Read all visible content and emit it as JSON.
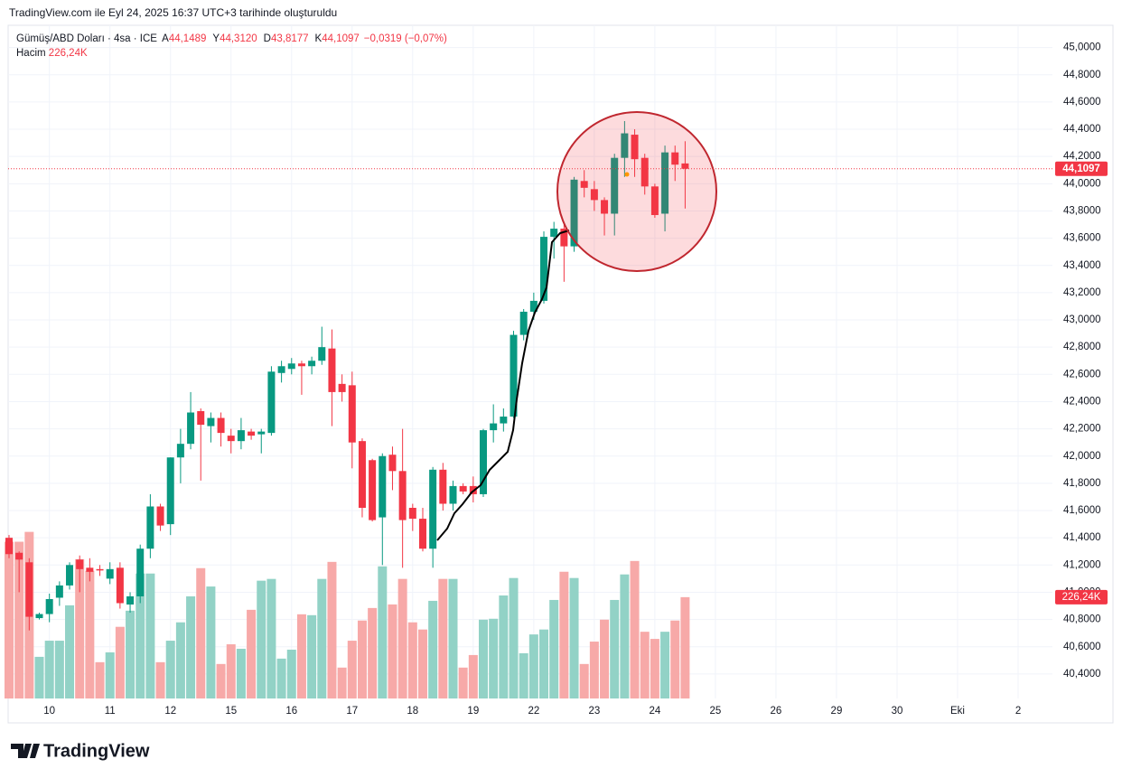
{
  "header": "TradingView.com ile Eyl 24, 2025 16:37 UTC+3 tarihinde oluşturuldu",
  "footer": "TradingView",
  "legend": {
    "symbol": "Gümüş/ABD Doları · 4sa · ICE",
    "fields": [
      {
        "key": "A",
        "value": "44,1489"
      },
      {
        "key": "Y",
        "value": "44,3120"
      },
      {
        "key": "D",
        "value": "43,8177"
      },
      {
        "key": "K",
        "value": "44,1097"
      }
    ],
    "change": "−0,0319 (−0,07%)",
    "volume_key": "Hacim",
    "volume_value": "226,24K"
  },
  "chart_data": {
    "type": "candlestick",
    "open": [
      41.4,
      41.29,
      41.22,
      40.81,
      40.84,
      40.96,
      41.05,
      41.24,
      41.18,
      41.17,
      41.1,
      41.18,
      40.91,
      40.97,
      41.32,
      41.63,
      41.5,
      41.99,
      42.09,
      42.33,
      42.22,
      42.28,
      42.15,
      42.11,
      42.18,
      42.16,
      42.17,
      42.61,
      42.64,
      42.68,
      42.66,
      42.7,
      42.79,
      42.53,
      42.52,
      42.11,
      41.97,
      41.55,
      42.01,
      41.89,
      41.62,
      41.54,
      41.32,
      41.9,
      41.65,
      41.78,
      41.78,
      41.72,
      42.19,
      42.24,
      42.29,
      42.89,
      43.06,
      43.14,
      43.61,
      43.67,
      43.54,
      44.02,
      43.96,
      43.88,
      43.78,
      44.19,
      44.36,
      44.19,
      43.98,
      43.78,
      44.23,
      44.1489
    ],
    "high": [
      41.42,
      41.3,
      41.25,
      40.85,
      40.99,
      41.08,
      41.22,
      41.27,
      41.25,
      41.2,
      41.22,
      41.22,
      41.0,
      41.35,
      41.72,
      41.65,
      41.99,
      42.2,
      42.47,
      42.35,
      42.32,
      42.32,
      42.2,
      42.28,
      42.2,
      42.2,
      42.66,
      42.7,
      42.72,
      42.7,
      42.73,
      42.95,
      42.93,
      42.6,
      42.62,
      42.13,
      41.98,
      42.02,
      42.07,
      42.2,
      41.65,
      41.62,
      41.92,
      41.95,
      41.82,
      41.8,
      41.85,
      42.2,
      42.38,
      42.35,
      42.92,
      43.08,
      43.2,
      43.65,
      43.72,
      43.7,
      44.05,
      44.1,
      44.02,
      43.9,
      44.22,
      44.46,
      44.4,
      44.22,
      44.0,
      44.28,
      44.28,
      44.312
    ],
    "low": [
      41.25,
      41.0,
      40.72,
      40.8,
      40.78,
      40.9,
      41.02,
      41.0,
      41.08,
      41.12,
      41.06,
      40.88,
      40.85,
      40.92,
      41.25,
      41.45,
      41.42,
      41.8,
      42.05,
      41.82,
      42.1,
      42.07,
      42.02,
      42.05,
      42.12,
      42.02,
      42.15,
      42.54,
      42.6,
      42.45,
      42.6,
      42.67,
      42.22,
      42.4,
      41.91,
      41.55,
      41.52,
      41.2,
      41.75,
      41.18,
      41.45,
      41.3,
      41.18,
      41.6,
      41.6,
      41.72,
      41.66,
      41.7,
      42.1,
      42.18,
      42.28,
      42.85,
      43.0,
      43.12,
      43.45,
      43.28,
      43.5,
      43.9,
      43.8,
      43.62,
      43.62,
      44.05,
      44.05,
      43.92,
      43.75,
      43.65,
      44.02,
      43.8177
    ],
    "close": [
      41.28,
      41.24,
      40.82,
      40.84,
      40.95,
      41.05,
      41.2,
      41.17,
      41.15,
      41.16,
      41.17,
      40.92,
      40.97,
      41.32,
      41.63,
      41.49,
      41.99,
      42.09,
      42.32,
      42.23,
      42.28,
      42.17,
      42.11,
      42.19,
      42.15,
      42.18,
      42.62,
      42.66,
      42.68,
      42.66,
      42.7,
      42.8,
      42.47,
      42.47,
      42.1,
      41.62,
      41.53,
      42.0,
      41.89,
      41.53,
      41.54,
      41.32,
      41.9,
      41.65,
      41.78,
      41.74,
      41.72,
      42.19,
      42.24,
      42.29,
      42.89,
      43.06,
      43.14,
      43.61,
      43.67,
      43.54,
      44.03,
      43.97,
      43.88,
      43.78,
      44.19,
      44.37,
      44.18,
      43.98,
      43.77,
      44.23,
      44.14,
      44.1097
    ],
    "volume": [
      350,
      350,
      372,
      93,
      129,
      129,
      208,
      311,
      285,
      81,
      103,
      160,
      196,
      279,
      279,
      81,
      129,
      170,
      228,
      291,
      250,
      77,
      121,
      111,
      198,
      263,
      267,
      89,
      109,
      188,
      186,
      267,
      305,
      69,
      129,
      174,
      202,
      295,
      210,
      267,
      170,
      154,
      218,
      267,
      267,
      69,
      97,
      176,
      178,
      230,
      269,
      101,
      143,
      154,
      220,
      283,
      269,
      77,
      127,
      176,
      220,
      277,
      307,
      149,
      133,
      149,
      174,
      226.24
    ],
    "up_color": "#089981",
    "down_color": "#f23645",
    "volume_up_color": "#92d2c6",
    "volume_down_color": "#f7a9a8",
    "xlim": [
      0,
      103.4
    ],
    "xticks": [
      {
        "value": 4,
        "label": "10"
      },
      {
        "value": 10,
        "label": "11"
      },
      {
        "value": 16,
        "label": "12"
      },
      {
        "value": 22,
        "label": "15"
      },
      {
        "value": 28,
        "label": "16"
      },
      {
        "value": 34,
        "label": "17"
      },
      {
        "value": 40,
        "label": "18"
      },
      {
        "value": 46,
        "label": "19"
      },
      {
        "value": 52,
        "label": "22"
      },
      {
        "value": 58,
        "label": "23"
      },
      {
        "value": 64,
        "label": "24"
      },
      {
        "value": 70,
        "label": "25"
      },
      {
        "value": 76,
        "label": "26"
      },
      {
        "value": 82,
        "label": "29"
      },
      {
        "value": 88,
        "label": "30"
      },
      {
        "value": 94,
        "label": "Eki"
      },
      {
        "value": 100,
        "label": "2"
      }
    ],
    "ylim": [
      40.22,
      45.15
    ],
    "yticks": [
      {
        "value": 40.4,
        "label": "40,4000"
      },
      {
        "value": 40.6,
        "label": "40,6000"
      },
      {
        "value": 40.8,
        "label": "40,8000"
      },
      {
        "value": 41.0,
        "label": "41,0000"
      },
      {
        "value": 41.2,
        "label": "41,2000"
      },
      {
        "value": 41.4,
        "label": "41,4000"
      },
      {
        "value": 41.6,
        "label": "41,6000"
      },
      {
        "value": 41.8,
        "label": "41,8000"
      },
      {
        "value": 42.0,
        "label": "42,0000"
      },
      {
        "value": 42.2,
        "label": "42,2000"
      },
      {
        "value": 42.4,
        "label": "42,4000"
      },
      {
        "value": 42.6,
        "label": "42,6000"
      },
      {
        "value": 42.8,
        "label": "42,8000"
      },
      {
        "value": 43.0,
        "label": "43,0000"
      },
      {
        "value": 43.2,
        "label": "43,2000"
      },
      {
        "value": 43.4,
        "label": "43,4000"
      },
      {
        "value": 43.6,
        "label": "43,6000"
      },
      {
        "value": 43.8,
        "label": "43,8000"
      },
      {
        "value": 44.0,
        "label": "44,0000"
      },
      {
        "value": 44.2,
        "label": "44,2000"
      },
      {
        "value": 44.4,
        "label": "44,4000"
      },
      {
        "value": 44.6,
        "label": "44,6000"
      },
      {
        "value": 44.8,
        "label": "44,8000"
      },
      {
        "value": 45.0,
        "label": "45,0000"
      }
    ],
    "volume_ylim": [
      0,
      460
    ],
    "last_price": {
      "value": 44.1097,
      "label": "44,1097"
    },
    "last_volume": {
      "value": 226.24,
      "label": "226,24K"
    },
    "grid": true
  }
}
